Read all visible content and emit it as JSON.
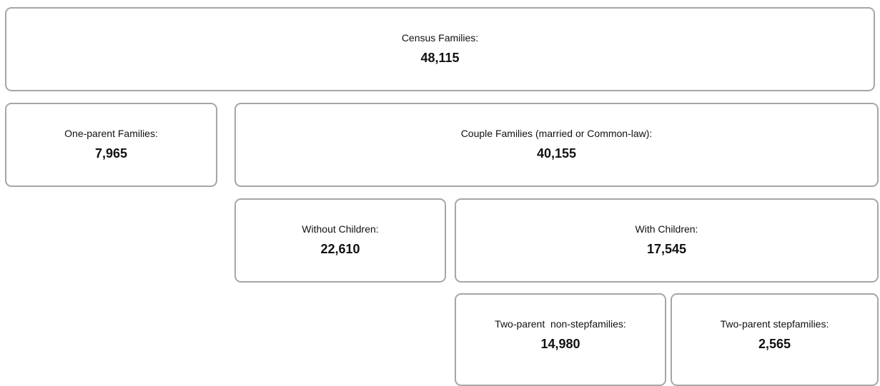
{
  "nodes": [
    {
      "label": "Census Families:",
      "value": "48,115"
    },
    {
      "label": "One-parent Families:",
      "value": "7,965"
    },
    {
      "label": "Couple Families (married or Common-law):",
      "value": "40,155"
    },
    {
      "label": "Without Children:",
      "value": "22,610"
    },
    {
      "label": "With Children:",
      "value": "17,545"
    },
    {
      "label": "Two-parent  non-stepfamilies:",
      "value": "14,980"
    },
    {
      "label": "Two-parent stepfamilies:",
      "value": "2,565"
    }
  ]
}
